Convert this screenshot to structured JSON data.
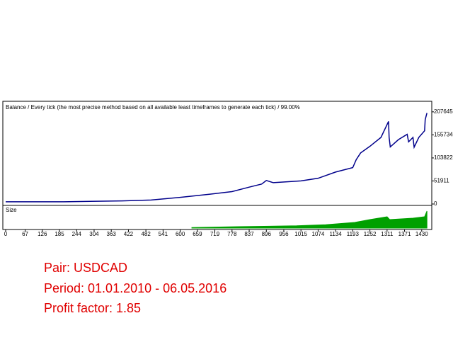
{
  "chart_data": [
    {
      "type": "line",
      "title": "Balance / Every tick (the most precise method based on all available least timeframes to generate each tick) / 99.00%",
      "series": [
        {
          "name": "Balance",
          "color": "#00008b",
          "x": [
            0,
            200,
            400,
            500,
            600,
            700,
            778,
            837,
            880,
            896,
            920,
            1015,
            1074,
            1134,
            1193,
            1205,
            1220,
            1252,
            1290,
            1316,
            1318,
            1322,
            1350,
            1380,
            1385,
            1400,
            1404,
            1420,
            1440,
            1442,
            1448
          ],
          "values": [
            5000,
            5000,
            7000,
            9000,
            15000,
            22000,
            28000,
            38000,
            45000,
            53000,
            48000,
            52000,
            58000,
            72000,
            82000,
            100000,
            115000,
            130000,
            150000,
            186000,
            150000,
            128600,
            145000,
            157000,
            140000,
            150000,
            128000,
            150000,
            165000,
            190000,
            205000
          ]
        }
      ],
      "xlim": [
        0,
        1450
      ],
      "ylim": [
        0,
        225000
      ],
      "yticks": [
        0,
        51911,
        103822,
        155734,
        207645
      ]
    },
    {
      "type": "area",
      "title": "Size",
      "series": [
        {
          "name": "Size",
          "color": "#00a000",
          "x": [
            640,
            800,
            1000,
            1100,
            1200,
            1252,
            1311,
            1320,
            1400,
            1440,
            1448
          ],
          "values": [
            0.02,
            0.05,
            0.08,
            0.12,
            0.2,
            0.3,
            0.4,
            0.3,
            0.35,
            0.4,
            0.6
          ]
        }
      ],
      "xlim": [
        0,
        1450
      ],
      "ylim": [
        0,
        0.65
      ],
      "xticks": [
        0,
        67,
        126,
        185,
        244,
        304,
        363,
        422,
        482,
        541,
        600,
        659,
        719,
        778,
        837,
        896,
        956,
        1015,
        1074,
        1134,
        1193,
        1252,
        1311,
        1371,
        1430
      ]
    }
  ],
  "report": {
    "pair": "Pair: USDCAD",
    "period": "Period: 01.01.2010 - 06.05.2016",
    "profit_factor": "Profit factor: 1.85"
  }
}
